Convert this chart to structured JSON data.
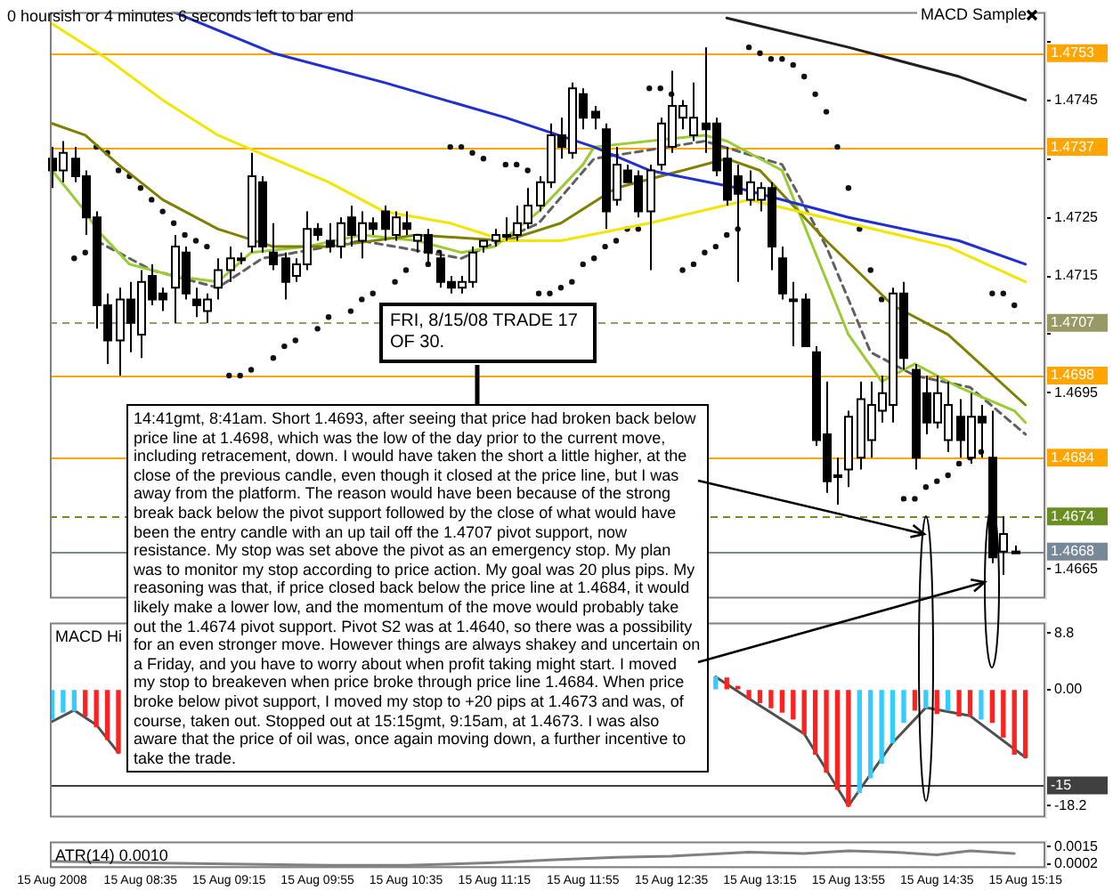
{
  "chart_data": [
    {
      "type": "candlestick",
      "tick_labels": "y",
      "xlim": [
        "2008-08-15T07:54",
        "2008-08-15T15:24"
      ],
      "ylim": [
        1.466,
        1.476
      ],
      "yticks": [
        1.4665,
        {
          "value": 1.4675,
          "label": null
        },
        {
          "value": 1.4685,
          "label": null
        },
        1.4695,
        {
          "value": 1.4705,
          "label": null
        },
        1.4715,
        1.4725,
        {
          "value": 1.4735,
          "label": null
        },
        1.4745,
        {
          "value": 1.4755,
          "label": null
        }
      ],
      "x": [
        "2008-08-15T07:55",
        "2008-08-15T08:00",
        "2008-08-15T08:05",
        "2008-08-15T08:10",
        "2008-08-15T08:15",
        "2008-08-15T08:20",
        "2008-08-15T08:25",
        "2008-08-15T08:30",
        "2008-08-15T08:35",
        "2008-08-15T08:40",
        "2008-08-15T08:45",
        "2008-08-15T08:50",
        "2008-08-15T08:55",
        "2008-08-15T09:00",
        "2008-08-15T09:05",
        "2008-08-15T09:10",
        "2008-08-15T09:15",
        "2008-08-15T09:20",
        "2008-08-15T09:25",
        "2008-08-15T09:30",
        "2008-08-15T09:35",
        "2008-08-15T09:40",
        "2008-08-15T09:45",
        "2008-08-15T09:50",
        "2008-08-15T09:55",
        "2008-08-15T10:00",
        "2008-08-15T10:05",
        "2008-08-15T10:10",
        "2008-08-15T10:15",
        "2008-08-15T10:20",
        "2008-08-15T10:25",
        "2008-08-15T10:30",
        "2008-08-15T10:35",
        "2008-08-15T10:40",
        "2008-08-15T10:45",
        "2008-08-15T10:50",
        "2008-08-15T10:55",
        "2008-08-15T11:00",
        "2008-08-15T11:05",
        "2008-08-15T11:10",
        "2008-08-15T11:15",
        "2008-08-15T11:20",
        "2008-08-15T11:25",
        "2008-08-15T11:30",
        "2008-08-15T11:35",
        "2008-08-15T11:40",
        "2008-08-15T11:45",
        "2008-08-15T11:50",
        "2008-08-15T11:55",
        "2008-08-15T12:00",
        "2008-08-15T12:05",
        "2008-08-15T12:10",
        "2008-08-15T12:15",
        "2008-08-15T12:20",
        "2008-08-15T12:25",
        "2008-08-15T12:30",
        "2008-08-15T12:35",
        "2008-08-15T12:40",
        "2008-08-15T12:45",
        "2008-08-15T12:50",
        "2008-08-15T12:55",
        "2008-08-15T13:00",
        "2008-08-15T13:05",
        "2008-08-15T13:10",
        "2008-08-15T13:15",
        "2008-08-15T13:20",
        "2008-08-15T13:25",
        "2008-08-15T13:30",
        "2008-08-15T13:35",
        "2008-08-15T13:40",
        "2008-08-15T13:45",
        "2008-08-15T13:50",
        "2008-08-15T13:55",
        "2008-08-15T14:00",
        "2008-08-15T14:05",
        "2008-08-15T14:10",
        "2008-08-15T14:15",
        "2008-08-15T14:20",
        "2008-08-15T14:25",
        "2008-08-15T14:30",
        "2008-08-15T14:35",
        "2008-08-15T14:40",
        "2008-08-15T14:45",
        "2008-08-15T14:50",
        "2008-08-15T14:55",
        "2008-08-15T15:00",
        "2008-08-15T15:05",
        "2008-08-15T15:10"
      ],
      "ohlc": [
        [
          1.4735,
          1.4737,
          1.473,
          1.4733
        ],
        [
          1.4733,
          1.4738,
          1.4731,
          1.4736
        ],
        [
          1.4735,
          1.4737,
          1.4731,
          1.4732
        ],
        [
          1.4732,
          1.4733,
          1.4722,
          1.4725
        ],
        [
          1.4725,
          1.4726,
          1.4706,
          1.471
        ],
        [
          1.471,
          1.4712,
          1.47,
          1.4704
        ],
        [
          1.4704,
          1.4713,
          1.4698,
          1.4711
        ],
        [
          1.4711,
          1.4714,
          1.4702,
          1.4707
        ],
        [
          1.4705,
          1.4716,
          1.4701,
          1.4714
        ],
        [
          1.4715,
          1.4717,
          1.471,
          1.4711
        ],
        [
          1.4712,
          1.4713,
          1.4709,
          1.4711
        ],
        [
          1.4713,
          1.4722,
          1.4707,
          1.472
        ],
        [
          1.4719,
          1.472,
          1.4711,
          1.4712
        ],
        [
          1.4711,
          1.4713,
          1.4708,
          1.471
        ],
        [
          1.4709,
          1.4712,
          1.4707,
          1.4711
        ],
        [
          1.4713,
          1.4718,
          1.4711,
          1.4716
        ],
        [
          1.4716,
          1.472,
          1.4714,
          1.4718
        ],
        [
          1.4718,
          1.4719,
          1.4717,
          1.4718
        ],
        [
          1.472,
          1.4736,
          1.4719,
          1.4732
        ],
        [
          1.4731,
          1.4732,
          1.4719,
          1.472
        ],
        [
          1.4719,
          1.4724,
          1.4716,
          1.4717
        ],
        [
          1.4718,
          1.4719,
          1.4711,
          1.4714
        ],
        [
          1.4715,
          1.4718,
          1.4714,
          1.4717
        ],
        [
          1.4717,
          1.4726,
          1.4716,
          1.4723
        ],
        [
          1.4723,
          1.4724,
          1.4721,
          1.4722
        ],
        [
          1.4721,
          1.4724,
          1.4719,
          1.472
        ],
        [
          1.472,
          1.4725,
          1.4718,
          1.4724
        ],
        [
          1.4725,
          1.4727,
          1.472,
          1.4722
        ],
        [
          1.4721,
          1.4726,
          1.4718,
          1.4724
        ],
        [
          1.4724,
          1.4725,
          1.4722,
          1.4723
        ],
        [
          1.4726,
          1.4727,
          1.4721,
          1.4723
        ],
        [
          1.4722,
          1.4726,
          1.4721,
          1.4725
        ],
        [
          1.4724,
          1.4726,
          1.4722,
          1.4723
        ],
        [
          1.4721,
          1.4722,
          1.4719,
          1.4722
        ],
        [
          1.4722,
          1.4723,
          1.4717,
          1.4719
        ],
        [
          1.4718,
          1.4719,
          1.4713,
          1.4714
        ],
        [
          1.4714,
          1.4715,
          1.4712,
          1.4713
        ],
        [
          1.4713,
          1.4715,
          1.4712,
          1.4714
        ],
        [
          1.4714,
          1.472,
          1.4713,
          1.4719
        ],
        [
          1.472,
          1.4721,
          1.4719,
          1.4721
        ],
        [
          1.4721,
          1.4723,
          1.472,
          1.4722
        ],
        [
          1.4722,
          1.4725,
          1.4721,
          1.4722
        ],
        [
          1.4722,
          1.4727,
          1.4721,
          1.4724
        ],
        [
          1.4724,
          1.473,
          1.4723,
          1.4727
        ],
        [
          1.4727,
          1.4732,
          1.4726,
          1.4731
        ],
        [
          1.4731,
          1.4741,
          1.473,
          1.4739
        ],
        [
          1.4739,
          1.4742,
          1.4735,
          1.4737
        ],
        [
          1.4736,
          1.4748,
          1.4735,
          1.4747
        ],
        [
          1.4746,
          1.4747,
          1.474,
          1.4742
        ],
        [
          1.4743,
          1.4744,
          1.474,
          1.4742
        ],
        [
          1.474,
          1.4741,
          1.4723,
          1.4726
        ],
        [
          1.4728,
          1.4737,
          1.4727,
          1.4734
        ],
        [
          1.4733,
          1.4734,
          1.4731,
          1.4731
        ],
        [
          1.4732,
          1.4733,
          1.4725,
          1.4726
        ],
        [
          1.4726,
          1.4734,
          1.4716,
          1.4733
        ],
        [
          1.4734,
          1.4742,
          1.4733,
          1.4741
        ],
        [
          1.4737,
          1.475,
          1.4736,
          1.4744
        ],
        [
          1.4742,
          1.4745,
          1.474,
          1.4744
        ],
        [
          1.4739,
          1.4748,
          1.4738,
          1.4742
        ],
        [
          1.4741,
          1.4754,
          1.4736,
          1.474
        ],
        [
          1.4741,
          1.4742,
          1.4732,
          1.4733
        ],
        [
          1.4735,
          1.4737,
          1.4727,
          1.4728
        ],
        [
          1.4732,
          1.4734,
          1.4714,
          1.4729
        ],
        [
          1.4728,
          1.4733,
          1.4727,
          1.4731
        ],
        [
          1.4728,
          1.4731,
          1.4726,
          1.473
        ],
        [
          1.473,
          1.4731,
          1.4716,
          1.472
        ],
        [
          1.4718,
          1.472,
          1.4711,
          1.4712
        ],
        [
          1.4711,
          1.4714,
          1.4703,
          1.4711
        ],
        [
          1.4711,
          1.4712,
          1.4703,
          1.4703
        ],
        [
          1.4702,
          1.4703,
          1.4686,
          1.4687
        ],
        [
          1.4688,
          1.4697,
          1.4678,
          1.468
        ],
        [
          1.4681,
          1.4684,
          1.4676,
          1.4681
        ],
        [
          1.4682,
          1.4692,
          1.4679,
          1.4691
        ],
        [
          1.4684,
          1.4697,
          1.4682,
          1.4694
        ],
        [
          1.4687,
          1.4697,
          1.4684,
          1.4693
        ],
        [
          1.4692,
          1.4698,
          1.469,
          1.4695
        ],
        [
          1.4693,
          1.4713,
          1.469,
          1.4712
        ],
        [
          1.4712,
          1.4714,
          1.4699,
          1.4701
        ],
        [
          1.4699,
          1.47,
          1.4682,
          1.4684
        ],
        [
          1.4695,
          1.4698,
          1.4688,
          1.469
        ],
        [
          1.469,
          1.4698,
          1.4689,
          1.4695
        ],
        [
          1.4687,
          1.4697,
          1.4685,
          1.4693
        ],
        [
          1.4691,
          1.4694,
          1.4684,
          1.4687
        ],
        [
          1.4684,
          1.4695,
          1.4683,
          1.4691
        ],
        [
          1.4691,
          1.4693,
          1.4684,
          1.469
        ],
        [
          1.4684,
          1.4692,
          1.4666,
          1.4667
        ],
        [
          1.4668,
          1.4674,
          1.4664,
          1.4671
        ],
        [
          1.4668,
          1.4669,
          1.4668,
          1.4668
        ]
      ],
      "series": [
        {
          "type": "line",
          "color": "#f2e600",
          "x": [
            "2008-08-15T07:55",
            "2008-08-15T08:20",
            "2008-08-15T08:45",
            "2008-08-15T09:10",
            "2008-08-15T09:35",
            "2008-08-15T10:00",
            "2008-08-15T10:25",
            "2008-08-15T10:55",
            "2008-08-15T11:20",
            "2008-08-15T11:45",
            "2008-08-15T12:25",
            "2008-08-15T13:10",
            "2008-08-15T13:55",
            "2008-08-15T14:40",
            "2008-08-15T15:15"
          ],
          "values": [
            1.4758,
            1.4752,
            1.4745,
            1.4739,
            1.4735,
            1.4731,
            1.4726,
            1.4724,
            1.4721,
            1.4721,
            1.4724,
            1.4728,
            1.4724,
            1.472,
            1.4714
          ]
        },
        {
          "type": "line",
          "color": "#1f2fd0",
          "x": [
            "2008-08-15T08:50",
            "2008-08-15T09:35",
            "2008-08-15T10:25",
            "2008-08-15T11:20",
            "2008-08-15T12:00",
            "2008-08-15T12:25",
            "2008-08-15T13:05",
            "2008-08-15T13:55",
            "2008-08-15T14:45",
            "2008-08-15T15:15"
          ],
          "values": [
            1.476,
            1.4753,
            1.4748,
            1.4742,
            1.4737,
            1.4733,
            1.473,
            1.4725,
            1.4721,
            1.4717
          ]
        },
        {
          "type": "line",
          "color": "#202020",
          "x": [
            "2008-08-15T13:00",
            "2008-08-15T13:55",
            "2008-08-15T14:45",
            "2008-08-15T15:15"
          ],
          "values": [
            1.4759,
            1.4754,
            1.4749,
            1.4745
          ]
        },
        {
          "type": "line",
          "color": "#808000",
          "x": [
            "2008-08-15T07:55",
            "2008-08-15T08:10",
            "2008-08-15T08:25",
            "2008-08-15T08:45",
            "2008-08-15T09:10",
            "2008-08-15T09:35",
            "2008-08-15T10:00",
            "2008-08-15T10:40",
            "2008-08-15T11:20",
            "2008-08-15T11:45",
            "2008-08-15T12:10",
            "2008-08-15T13:00",
            "2008-08-15T13:15",
            "2008-08-15T13:45",
            "2008-08-15T14:15",
            "2008-08-15T14:40",
            "2008-08-15T15:15"
          ],
          "values": [
            1.4741,
            1.4739,
            1.4734,
            1.4728,
            1.4723,
            1.472,
            1.472,
            1.4722,
            1.4721,
            1.4724,
            1.473,
            1.4735,
            1.4733,
            1.4721,
            1.471,
            1.4705,
            1.4693
          ]
        },
        {
          "type": "line",
          "color": "#99cc33",
          "x": [
            "2008-08-15T07:55",
            "2008-08-15T08:10",
            "2008-08-15T08:15",
            "2008-08-15T08:30",
            "2008-08-15T08:50",
            "2008-08-15T09:10",
            "2008-08-15T09:25",
            "2008-08-15T09:50",
            "2008-08-15T10:15",
            "2008-08-15T10:40",
            "2008-08-15T11:00",
            "2008-08-15T11:15",
            "2008-08-15T11:35",
            "2008-08-15T11:55",
            "2008-08-15T12:00",
            "2008-08-15T12:50",
            "2008-08-15T13:00",
            "2008-08-15T13:25",
            "2008-08-15T13:40",
            "2008-08-15T13:55",
            "2008-08-15T14:10",
            "2008-08-15T14:25",
            "2008-08-15T14:45",
            "2008-08-15T15:10",
            "2008-08-15T15:15"
          ],
          "values": [
            1.4733,
            1.4726,
            1.4723,
            1.4717,
            1.4715,
            1.4714,
            1.4719,
            1.472,
            1.4722,
            1.4721,
            1.4719,
            1.472,
            1.4726,
            1.4734,
            1.4737,
            1.4739,
            1.4738,
            1.4733,
            1.4719,
            1.4705,
            1.4697,
            1.47,
            1.4696,
            1.4692,
            1.469
          ]
        },
        {
          "type": "line",
          "color": "#606060",
          "line_style": "dashed",
          "x": [
            "2008-08-15T08:15",
            "2008-08-15T08:40",
            "2008-08-15T09:10",
            "2008-08-15T09:30",
            "2008-08-15T10:15",
            "2008-08-15T11:00",
            "2008-08-15T11:35",
            "2008-08-15T12:00",
            "2008-08-15T12:50",
            "2008-08-15T13:25",
            "2008-08-15T13:45",
            "2008-08-15T14:05",
            "2008-08-15T14:25",
            "2008-08-15T14:50",
            "2008-08-15T15:15"
          ],
          "values": [
            1.4721,
            1.4716,
            1.4713,
            1.4718,
            1.4721,
            1.4718,
            1.4724,
            1.4735,
            1.4738,
            1.4734,
            1.472,
            1.4702,
            1.4698,
            1.4696,
            1.4688
          ]
        },
        {
          "type": "scatter",
          "color": "#101010",
          "marker": "circle",
          "x": [
            "2008-08-15T08:05",
            "2008-08-15T08:10",
            "2008-08-15T08:15",
            "2008-08-15T08:20",
            "2008-08-15T08:25",
            "2008-08-15T08:30",
            "2008-08-15T08:35",
            "2008-08-15T08:40",
            "2008-08-15T08:45",
            "2008-08-15T08:50",
            "2008-08-15T08:55",
            "2008-08-15T09:00",
            "2008-08-15T09:05",
            "2008-08-15T09:15",
            "2008-08-15T09:20",
            "2008-08-15T09:25",
            "2008-08-15T09:35",
            "2008-08-15T09:40",
            "2008-08-15T09:45",
            "2008-08-15T09:55",
            "2008-08-15T10:00",
            "2008-08-15T10:10",
            "2008-08-15T10:15",
            "2008-08-15T10:20",
            "2008-08-15T10:30",
            "2008-08-15T10:35",
            "2008-08-15T10:45",
            "2008-08-15T10:50",
            "2008-08-15T10:55",
            "2008-08-15T11:00",
            "2008-08-15T11:05",
            "2008-08-15T11:10",
            "2008-08-15T11:20",
            "2008-08-15T11:25",
            "2008-08-15T11:30",
            "2008-08-15T11:35",
            "2008-08-15T11:40",
            "2008-08-15T11:45",
            "2008-08-15T11:50",
            "2008-08-15T11:55",
            "2008-08-15T12:00",
            "2008-08-15T12:05",
            "2008-08-15T12:10",
            "2008-08-15T12:15",
            "2008-08-15T12:20",
            "2008-08-15T12:25",
            "2008-08-15T12:30",
            "2008-08-15T12:35",
            "2008-08-15T12:40",
            "2008-08-15T12:45",
            "2008-08-15T12:50",
            "2008-08-15T12:55",
            "2008-08-15T13:00",
            "2008-08-15T13:05",
            "2008-08-15T13:10",
            "2008-08-15T13:15",
            "2008-08-15T13:20",
            "2008-08-15T13:25",
            "2008-08-15T13:30",
            "2008-08-15T13:35",
            "2008-08-15T13:40",
            "2008-08-15T13:45",
            "2008-08-15T13:50",
            "2008-08-15T13:55",
            "2008-08-15T14:00",
            "2008-08-15T14:05",
            "2008-08-15T14:10",
            "2008-08-15T14:20",
            "2008-08-15T14:25",
            "2008-08-15T14:30",
            "2008-08-15T14:35",
            "2008-08-15T14:40",
            "2008-08-15T14:45",
            "2008-08-15T14:50",
            "2008-08-15T14:55",
            "2008-08-15T15:00",
            "2008-08-15T15:05",
            "2008-08-15T15:10"
          ],
          "values": [
            1.4718,
            1.4719,
            1.4737,
            1.4736,
            1.4733,
            1.4732,
            1.473,
            1.4728,
            1.4726,
            1.4724,
            1.4722,
            1.4721,
            1.472,
            1.4698,
            1.4698,
            1.4699,
            1.4701,
            1.4703,
            1.4704,
            1.4706,
            1.4708,
            1.4709,
            1.4711,
            1.4712,
            1.4714,
            1.4716,
            1.4717,
            1.4719,
            1.4737,
            1.4737,
            1.4736,
            1.4735,
            1.4734,
            1.4734,
            1.4733,
            1.4712,
            1.4712,
            1.4713,
            1.4714,
            1.4717,
            1.4718,
            1.472,
            1.4721,
            1.4723,
            1.4723,
            1.4747,
            1.4747,
            1.4746,
            1.4716,
            1.4717,
            1.4719,
            1.472,
            1.4722,
            1.4723,
            1.4754,
            1.4753,
            1.4752,
            1.4752,
            1.4751,
            1.4749,
            1.4746,
            1.4743,
            1.4737,
            1.473,
            1.4723,
            1.4716,
            1.4711,
            1.4677,
            1.4677,
            1.4679,
            1.468,
            1.4681,
            1.4683,
            1.4684,
            1.4685,
            1.4712,
            1.4712,
            1.471
          ]
        }
      ],
      "ref_lines": [
        {
          "axis": "y",
          "value": 1.4753,
          "label": "1.4753",
          "color": "#ffa500"
        },
        {
          "axis": "y",
          "value": 1.4737,
          "label": "1.4737",
          "color": "#ffa500"
        },
        {
          "axis": "y",
          "value": 1.4707,
          "label": "1.4707",
          "color": "#999966",
          "line_style": "dashed"
        },
        {
          "axis": "y",
          "value": 1.4698,
          "label": "1.4698",
          "color": "#ffa500"
        },
        {
          "axis": "y",
          "value": 1.4684,
          "label": "1.4684",
          "color": "#ffa500"
        },
        {
          "axis": "y",
          "value": 1.4674,
          "label": "1.4674",
          "color": "#6b8e23",
          "line_style": "dashed"
        },
        {
          "axis": "y",
          "value": 1.4668,
          "label": "1.4668",
          "color": "#778899"
        }
      ],
      "annotations": [
        "0 hoursish or 4 minutes 6 seconds left to bar end",
        "MACD Sample",
        "FRI, 8/15/08 TRADE 17 OF 30.",
        "14:41gmt, 8:41am. Short 1.4693, after seeing that price had broken back below price line at 1.4698, which was the low of the day prior to the current move, including retracement, down. I would have taken the short a little higher, at the close of the previous candle, even though it closed at the price line, but I was away from the platform. The reason would have been because of the strong break back below the pivot support followed by the close of what would have been the entry candle with an up tail off the 1.4707 pivot support, now resistance. My stop was set above the pivot as an emergency stop. My plan was to monitor my stop according to price action. My goal was 20 plus pips. My reasoning was that, if price closed back below the price line at 1.4684, it would likely make a lower low, and the momentum of the move would probably take out the 1.4674 pivot support. Pivot S2 was at 1.4640, so there was a possibility for an even stronger move. However things are always shakey and uncertain on a Friday, and you have to worry about when profit taking might start. I moved my stop to breakeven when price broke through price line 1.4684. When price broke below pivot support, I moved my stop to +20 pips at 1.4673 and was, of course, taken out.  Stopped out at 15:15gmt, 9:15am, at 1.4673. I was also aware that the price of oil was, once again moving down, a further incentive to take the trade."
      ]
    },
    {
      "type": "bar",
      "title": "MACD Hi",
      "tick_labels": "y",
      "xlim": [
        "2008-08-15T07:54",
        "2008-08-15T15:24"
      ],
      "ylim": [
        -20,
        10.5
      ],
      "yticks": [
        8.8,
        {
          "value": 0,
          "label": "0.00"
        },
        -18.2
      ],
      "ref_lines": [
        {
          "axis": "y",
          "value": -15,
          "label": "-15",
          "color": "#404040"
        }
      ],
      "series": [
        {
          "x": [
            "2008-08-15T07:55",
            "2008-08-15T08:00",
            "2008-08-15T08:05",
            "2008-08-15T08:10",
            "2008-08-15T08:15",
            "2008-08-15T08:20",
            "2008-08-15T08:25",
            "2008-08-15T12:55",
            "2008-08-15T13:00",
            "2008-08-15T13:05",
            "2008-08-15T13:10",
            "2008-08-15T13:15",
            "2008-08-15T13:20",
            "2008-08-15T13:25",
            "2008-08-15T13:30",
            "2008-08-15T13:35",
            "2008-08-15T13:40",
            "2008-08-15T13:45",
            "2008-08-15T13:50",
            "2008-08-15T13:55",
            "2008-08-15T14:00",
            "2008-08-15T14:05",
            "2008-08-15T14:10",
            "2008-08-15T14:15",
            "2008-08-15T14:20",
            "2008-08-15T14:25",
            "2008-08-15T14:30",
            "2008-08-15T14:35",
            "2008-08-15T14:40",
            "2008-08-15T14:45",
            "2008-08-15T14:50",
            "2008-08-15T14:55",
            "2008-08-15T15:00",
            "2008-08-15T15:05",
            "2008-08-15T15:10",
            "2008-08-15T15:15"
          ],
          "values": [
            -4.6,
            -3.5,
            -3.3,
            -4.1,
            -5.8,
            -7.8,
            -9.9,
            2.0,
            1.8,
            0.5,
            -1.4,
            -2.0,
            -2.8,
            -3.5,
            -4.6,
            -6.9,
            -10.1,
            -12.9,
            -15.6,
            -18.2,
            -16.1,
            -13.8,
            -11.5,
            -8.3,
            -5.1,
            -3.2,
            -2.8,
            -3.7,
            -3.2,
            -4.1,
            -4.1,
            -4.6,
            -5.1,
            -7.4,
            -10.1,
            -10.6
          ],
          "colors": [
            "#33ccff",
            "#33ccff",
            "#33ccff",
            "#ff2020",
            "#ff2020",
            "#ff2020",
            "#ff2020",
            "#33ccff",
            "#ff2020",
            "#ff2020",
            "#ff2020",
            "#ff2020",
            "#ff2020",
            "#ff2020",
            "#ff2020",
            "#ff2020",
            "#ff2020",
            "#ff2020",
            "#ff2020",
            "#ff2020",
            "#33ccff",
            "#33ccff",
            "#33ccff",
            "#33ccff",
            "#33ccff",
            "#ff2020",
            "#33ccff",
            "#ff2020",
            "#33ccff",
            "#ff2020",
            "#ff2020",
            "#33ccff",
            "#ff2020",
            "#ff2020",
            "#ff2020",
            "#ff2020"
          ]
        },
        {
          "type": "line",
          "color": "#505050",
          "x": [
            "2008-08-15T07:55",
            "2008-08-15T08:05",
            "2008-08-15T08:15",
            "2008-08-15T08:25",
            "2008-08-15T10:30",
            "2008-08-15T12:55",
            "2008-08-15T13:10",
            "2008-08-15T13:35",
            "2008-08-15T13:55",
            "2008-08-15T14:15",
            "2008-08-15T14:30",
            "2008-08-15T14:50",
            "2008-08-15T15:15"
          ],
          "values": [
            -5.0,
            -3.2,
            -5.5,
            -9.9,
            null,
            2.0,
            -1.4,
            -6.9,
            -18.2,
            -8.3,
            -2.8,
            -4.1,
            -10.6
          ]
        }
      ]
    },
    {
      "type": "line",
      "title": "ATR(14) 0.0010",
      "xlim": [
        "2008-08-15T07:54",
        "2008-08-15T15:24"
      ],
      "ylim": [
        -0.0001,
        0.0019
      ],
      "yticks": [
        0.0015,
        0.0002
      ],
      "xticks": [
        {
          "value": "2008-08-15T07:55",
          "label": "15 Aug 2008"
        },
        {
          "value": "2008-08-15T08:35",
          "label": "15 Aug 08:35"
        },
        {
          "value": "2008-08-15T09:15",
          "label": "15 Aug 09:15"
        },
        {
          "value": "2008-08-15T09:55",
          "label": "15 Aug 09:55"
        },
        {
          "value": "2008-08-15T10:35",
          "label": "15 Aug 10:35"
        },
        {
          "value": "2008-08-15T11:15",
          "label": "15 Aug 11:15"
        },
        {
          "value": "2008-08-15T11:55",
          "label": "15 Aug 11:55"
        },
        {
          "value": "2008-08-15T12:35",
          "label": "15 Aug 12:35"
        },
        {
          "value": "2008-08-15T13:15",
          "label": "15 Aug 13:15"
        },
        {
          "value": "2008-08-15T13:55",
          "label": "15 Aug 13:55"
        },
        {
          "value": "2008-08-15T14:35",
          "label": "15 Aug 14:35"
        },
        {
          "value": "2008-08-15T15:15",
          "label": "15 Aug 15:15"
        }
      ],
      "color": "#808080",
      "x": [
        "2008-08-15T07:55",
        "2008-08-15T08:30",
        "2008-08-15T09:15",
        "2008-08-15T10:00",
        "2008-08-15T10:35",
        "2008-08-15T11:15",
        "2008-08-15T11:40",
        "2008-08-15T12:10",
        "2008-08-15T12:35",
        "2008-08-15T13:10",
        "2008-08-15T13:35",
        "2008-08-15T13:55",
        "2008-08-15T14:15",
        "2008-08-15T14:35",
        "2008-08-15T14:50",
        "2008-08-15T15:10"
      ],
      "values": [
        0.0004,
        0.0003,
        0.0002,
        0.0001,
        0.0001,
        0.0003,
        0.0005,
        0.0007,
        0.0008,
        0.0011,
        0.001,
        0.0012,
        0.0011,
        0.0009,
        0.0012,
        0.001
      ]
    }
  ]
}
